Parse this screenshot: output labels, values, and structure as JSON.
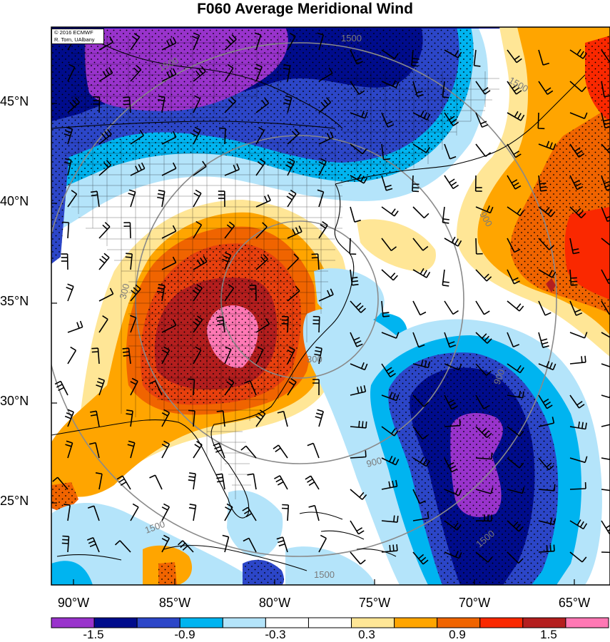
{
  "title": "F060 Average Meridional Wind",
  "credit": {
    "line1": "© 2016 ECMWF",
    "line2": "R. Torn, UAlbany"
  },
  "lat_labels": [
    "45°N",
    "40°N",
    "35°N",
    "30°N",
    "25°N"
  ],
  "lon_labels": [
    "90°W",
    "85°W",
    "80°W",
    "75°W",
    "70°W",
    "65°W"
  ],
  "contour_labels": [
    "1500",
    "1500",
    "1500",
    "900",
    "300",
    "300",
    "900",
    "1500",
    "1500",
    "900",
    "1500"
  ],
  "colorbar": {
    "colors": [
      "#9933cc",
      "#000c8c",
      "#2c46c8",
      "#00b4f0",
      "#b4e4fa",
      "#ffffff",
      "#ffffff",
      "#ffe696",
      "#ffa500",
      "#f06400",
      "#fa2800",
      "#b41e1e",
      "#ff78b4"
    ],
    "labels": [
      "-1.5",
      "-0.9",
      "-0.3",
      "0.3",
      "0.9",
      "1.5"
    ]
  },
  "palette": {
    "purple": "#9933cc",
    "navy": "#000c8c",
    "blue": "#2c46c8",
    "cyan": "#00b4f0",
    "lightblue": "#b4e4fa",
    "yellow": "#ffe696",
    "orange": "#ffa500",
    "darkorange": "#f06400",
    "red": "#e8400e",
    "darkred": "#b41e1e",
    "pink": "#ff78b4"
  }
}
